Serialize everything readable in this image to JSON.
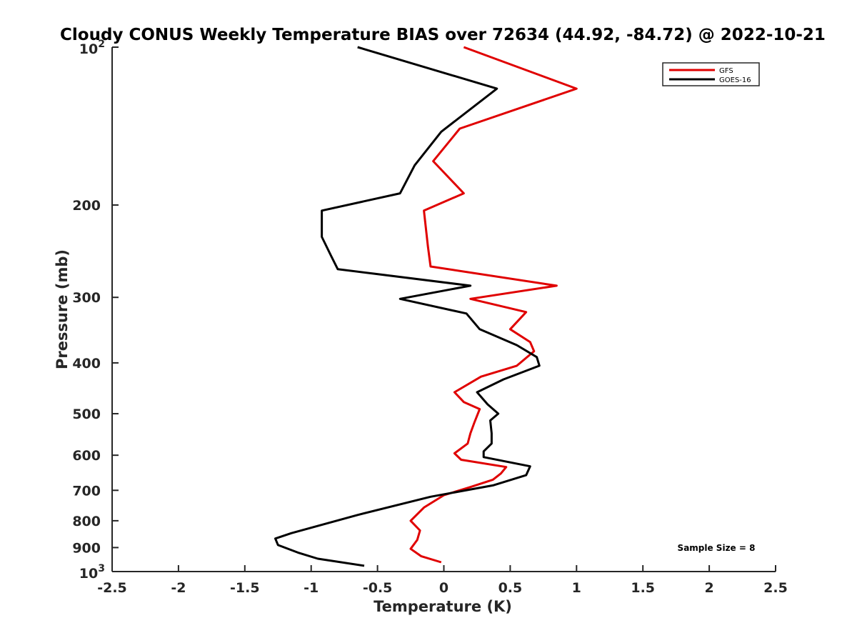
{
  "chart_data": {
    "type": "line",
    "title": "Cloudy CONUS Weekly Temperature BIAS over 72634 (44.92, -84.72) @ 2022-10-21",
    "xlabel": "Temperature (K)",
    "ylabel": "Pressure (mb)",
    "xlim": [
      -2.5,
      2.5
    ],
    "ylim": [
      100,
      1000
    ],
    "y_scale": "log",
    "y_reversed": true,
    "grid": false,
    "legend_position": "top-right",
    "x_ticks": [
      -2.5,
      -2,
      -1.5,
      -1,
      -0.5,
      0,
      0.5,
      1,
      1.5,
      2,
      2.5
    ],
    "x_tick_labels": [
      "-2.5",
      "-2",
      "-1.5",
      "-1",
      "-0.5",
      "0",
      "0.5",
      "1",
      "1.5",
      "2",
      "2.5"
    ],
    "y_ticks": [
      200,
      300,
      400,
      500,
      600,
      700,
      800,
      900
    ],
    "y_tick_labels": [
      "200",
      "300",
      "400",
      "500",
      "600",
      "700",
      "800",
      "900"
    ],
    "y_end_labels": {
      "top": {
        "base": "10",
        "exp": "2",
        "value": 100
      },
      "bottom": {
        "base": "10",
        "exp": "3",
        "value": 1000
      }
    },
    "annotation": "Sample Size = 8",
    "series": [
      {
        "name": "GFS",
        "color": "#e00000",
        "points": [
          [
            0.15,
            100
          ],
          [
            1.0,
            120
          ],
          [
            0.12,
            143
          ],
          [
            -0.08,
            165
          ],
          [
            0.15,
            190
          ],
          [
            -0.15,
            205
          ],
          [
            -0.12,
            240
          ],
          [
            -0.1,
            262
          ],
          [
            0.85,
            285
          ],
          [
            0.2,
            302
          ],
          [
            0.62,
            320
          ],
          [
            0.5,
            345
          ],
          [
            0.65,
            365
          ],
          [
            0.68,
            380
          ],
          [
            0.55,
            405
          ],
          [
            0.28,
            425
          ],
          [
            0.08,
            455
          ],
          [
            0.15,
            475
          ],
          [
            0.27,
            490
          ],
          [
            0.23,
            520
          ],
          [
            0.2,
            545
          ],
          [
            0.18,
            570
          ],
          [
            0.08,
            595
          ],
          [
            0.13,
            612
          ],
          [
            0.47,
            632
          ],
          [
            0.43,
            650
          ],
          [
            0.37,
            668
          ],
          [
            0.2,
            690
          ],
          [
            0.0,
            715
          ],
          [
            -0.15,
            755
          ],
          [
            -0.25,
            800
          ],
          [
            -0.18,
            835
          ],
          [
            -0.2,
            870
          ],
          [
            -0.25,
            905
          ],
          [
            -0.17,
            935
          ],
          [
            -0.02,
            960
          ]
        ]
      },
      {
        "name": "GOES-16",
        "color": "#000000",
        "points": [
          [
            -0.65,
            100
          ],
          [
            0.4,
            120
          ],
          [
            -0.02,
            145
          ],
          [
            -0.22,
            168
          ],
          [
            -0.33,
            190
          ],
          [
            -0.92,
            205
          ],
          [
            -0.92,
            230
          ],
          [
            -0.85,
            250
          ],
          [
            -0.8,
            265
          ],
          [
            0.2,
            285
          ],
          [
            -0.33,
            302
          ],
          [
            0.17,
            322
          ],
          [
            0.27,
            345
          ],
          [
            0.55,
            370
          ],
          [
            0.7,
            390
          ],
          [
            0.72,
            405
          ],
          [
            0.45,
            430
          ],
          [
            0.25,
            455
          ],
          [
            0.33,
            480
          ],
          [
            0.41,
            500
          ],
          [
            0.35,
            515
          ],
          [
            0.36,
            545
          ],
          [
            0.36,
            570
          ],
          [
            0.3,
            590
          ],
          [
            0.3,
            605
          ],
          [
            0.65,
            630
          ],
          [
            0.62,
            655
          ],
          [
            0.37,
            685
          ],
          [
            -0.1,
            720
          ],
          [
            -0.65,
            780
          ],
          [
            -1.15,
            845
          ],
          [
            -1.27,
            865
          ],
          [
            -1.25,
            890
          ],
          [
            -1.1,
            920
          ],
          [
            -0.95,
            945
          ],
          [
            -0.6,
            975
          ]
        ]
      }
    ]
  }
}
